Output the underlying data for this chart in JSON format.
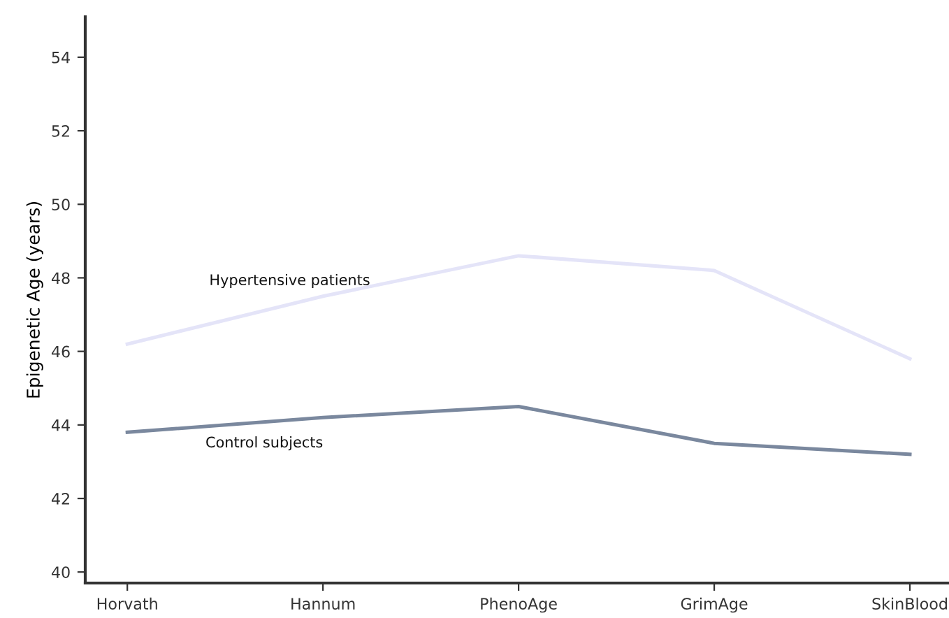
{
  "chart_data": {
    "type": "line",
    "ylabel": "Epigenetic Age (years)",
    "categories": [
      "Horvath",
      "Hannum",
      "PhenoAge",
      "GrimAge",
      "SkinBlood"
    ],
    "series": [
      {
        "name": "Hypertensive patients",
        "color": "#e4e4f8",
        "values": [
          46.2,
          47.5,
          48.6,
          48.2,
          45.8
        ]
      },
      {
        "name": "Control subjects",
        "color": "#7a889e",
        "values": [
          43.8,
          44.2,
          44.5,
          43.5,
          43.2
        ]
      }
    ],
    "ylim": [
      39.7,
      55.1
    ],
    "yticks": [
      40,
      42,
      44,
      46,
      48,
      50,
      52,
      54
    ],
    "grid": false,
    "legend": false,
    "marker": "none",
    "line_style": "solid"
  }
}
